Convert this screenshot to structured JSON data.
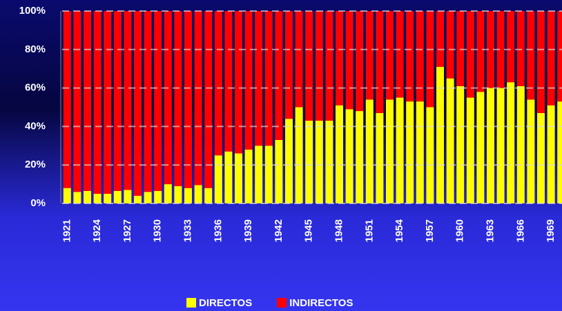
{
  "chart_data": {
    "type": "stacked_bar",
    "categories": [
      "1921",
      null,
      null,
      "1924",
      null,
      null,
      "1927",
      null,
      null,
      "1930",
      null,
      null,
      "1933",
      null,
      null,
      "1936",
      null,
      null,
      "1939",
      null,
      null,
      "1942",
      null,
      null,
      "1945",
      null,
      null,
      "1948",
      null,
      null,
      "1951",
      null,
      null,
      "1954",
      null,
      null,
      "1957",
      null,
      null,
      "1960",
      null,
      null,
      "1963",
      null,
      null,
      "1966",
      null,
      null,
      "1969",
      null
    ],
    "series": [
      {
        "name": "DIRECTOS",
        "color": "#ffff00",
        "values": [
          8,
          6,
          6.5,
          5,
          5,
          6.5,
          7,
          4,
          6,
          6.5,
          10,
          9,
          8,
          9.5,
          8,
          25,
          27,
          26,
          28,
          30,
          30,
          33,
          44,
          50,
          43,
          43,
          43,
          51,
          49,
          48,
          54,
          47,
          54,
          55,
          53,
          53,
          50,
          71,
          65,
          61,
          55,
          58,
          60,
          60,
          63,
          61,
          54,
          47,
          51,
          53
        ]
      },
      {
        "name": "INDIRECTOS",
        "color": "#ff0000",
        "values": [
          92,
          94,
          93.5,
          95,
          95,
          93.5,
          93,
          96,
          94,
          93.5,
          90,
          91,
          92,
          90.5,
          92,
          75,
          73,
          74,
          72,
          70,
          70,
          67,
          56,
          50,
          57,
          57,
          57,
          49,
          51,
          52,
          46,
          53,
          46,
          45,
          47,
          47,
          50,
          29,
          35,
          39,
          45,
          42,
          40,
          40,
          37,
          39,
          46,
          53,
          49,
          47
        ]
      }
    ],
    "ylim": [
      0,
      100
    ],
    "yticks": [
      {
        "value": 0,
        "label": "0%"
      },
      {
        "value": 20,
        "label": "20%"
      },
      {
        "value": 40,
        "label": "40%"
      },
      {
        "value": 60,
        "label": "60%"
      },
      {
        "value": 80,
        "label": "80%"
      },
      {
        "value": 100,
        "label": "100%"
      }
    ],
    "grid": true
  }
}
